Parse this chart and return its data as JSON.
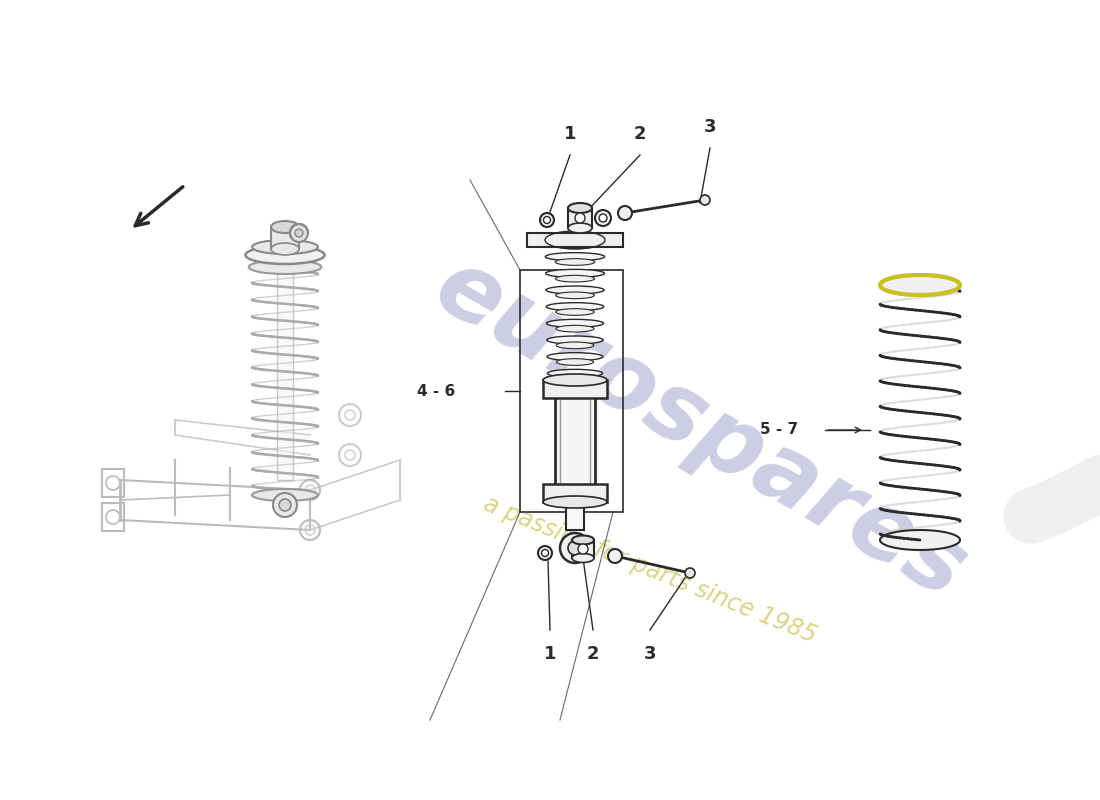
{
  "bg_color": "#ffffff",
  "line_color": "#2a2a2a",
  "light_line_color": "#999999",
  "very_light_color": "#cccccc",
  "parts": {
    "label_1_top": "1",
    "label_2_top": "2",
    "label_3_top": "3",
    "label_46": "4 - 6",
    "label_57": "5 - 7",
    "label_1_bot": "1",
    "label_2_bot": "2",
    "label_3_bot": "3"
  },
  "figsize": [
    11.0,
    8.0
  ],
  "dpi": 100,
  "watermark_euro_color": "#c8c8e0",
  "watermark_text_color": "#d4cc70",
  "spring_right_color": "#c8c8c8",
  "spring_yellow_rim": "#c8c020"
}
